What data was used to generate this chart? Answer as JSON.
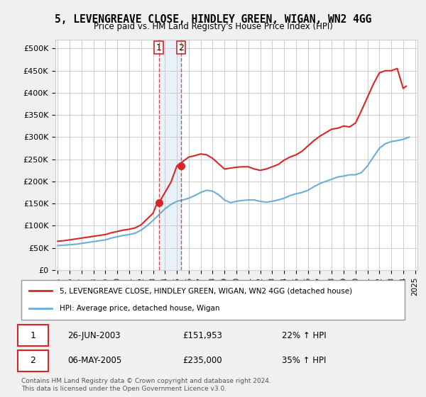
{
  "title": "5, LEVENGREAVE CLOSE, HINDLEY GREEN, WIGAN, WN2 4GG",
  "subtitle": "Price paid vs. HM Land Registry's House Price Index (HPI)",
  "legend_line1": "5, LEVENGREAVE CLOSE, HINDLEY GREEN, WIGAN, WN2 4GG (detached house)",
  "legend_line2": "HPI: Average price, detached house, Wigan",
  "transaction1_label": "1",
  "transaction1_date": "26-JUN-2003",
  "transaction1_price": "£151,953",
  "transaction1_hpi": "22% ↑ HPI",
  "transaction2_label": "2",
  "transaction2_date": "06-MAY-2005",
  "transaction2_price": "£235,000",
  "transaction2_hpi": "35% ↑ HPI",
  "footnote": "Contains HM Land Registry data © Crown copyright and database right 2024.\nThis data is licensed under the Open Government Licence v3.0.",
  "hpi_color": "#6baed6",
  "price_color": "#d62728",
  "transaction_color": "#d62728",
  "marker_color": "#d62728",
  "ylim": [
    0,
    520000
  ],
  "yticks": [
    0,
    50000,
    100000,
    150000,
    200000,
    250000,
    300000,
    350000,
    400000,
    450000,
    500000
  ],
  "ytick_labels": [
    "£0",
    "£50K",
    "£100K",
    "£150K",
    "£200K",
    "£250K",
    "£300K",
    "£350K",
    "£400K",
    "£450K",
    "£500K"
  ],
  "hpi_data": {
    "years": [
      1995,
      1995.5,
      1996,
      1996.5,
      1997,
      1997.5,
      1998,
      1998.5,
      1999,
      1999.5,
      2000,
      2000.5,
      2001,
      2001.5,
      2002,
      2002.5,
      2003,
      2003.5,
      2004,
      2004.5,
      2005,
      2005.5,
      2006,
      2006.5,
      2007,
      2007.5,
      2008,
      2008.5,
      2009,
      2009.5,
      2010,
      2010.5,
      2011,
      2011.5,
      2012,
      2012.5,
      2013,
      2013.5,
      2014,
      2014.5,
      2015,
      2015.5,
      2016,
      2016.5,
      2017,
      2017.5,
      2018,
      2018.5,
      2019,
      2019.5,
      2020,
      2020.5,
      2021,
      2021.5,
      2022,
      2022.5,
      2023,
      2023.5,
      2024,
      2024.5
    ],
    "values": [
      55000,
      56000,
      57000,
      58000,
      60000,
      62000,
      64000,
      66000,
      68000,
      72000,
      75000,
      78000,
      80000,
      83000,
      90000,
      100000,
      112000,
      125000,
      138000,
      148000,
      155000,
      158000,
      162000,
      168000,
      175000,
      180000,
      178000,
      170000,
      158000,
      152000,
      155000,
      157000,
      158000,
      158000,
      155000,
      153000,
      155000,
      158000,
      162000,
      168000,
      172000,
      175000,
      180000,
      188000,
      195000,
      200000,
      205000,
      210000,
      212000,
      215000,
      215000,
      220000,
      235000,
      255000,
      275000,
      285000,
      290000,
      292000,
      295000,
      300000
    ]
  },
  "price_data": {
    "years": [
      1995,
      1995.5,
      1996,
      1996.5,
      1997,
      1997.5,
      1998,
      1998.5,
      1999,
      1999.5,
      2000,
      2000.5,
      2001,
      2001.5,
      2002,
      2002.5,
      2003,
      2003.25,
      2003.5,
      2004,
      2004.5,
      2005,
      2005.5,
      2006,
      2006.5,
      2007,
      2007.5,
      2008,
      2008.5,
      2009,
      2009.5,
      2010,
      2010.5,
      2011,
      2011.5,
      2012,
      2012.5,
      2013,
      2013.5,
      2014,
      2014.5,
      2015,
      2015.5,
      2016,
      2016.5,
      2017,
      2017.5,
      2018,
      2018.5,
      2019,
      2019.5,
      2020,
      2020.5,
      2021,
      2021.5,
      2022,
      2022.5,
      2023,
      2023.5,
      2024,
      2024.25
    ],
    "values": [
      65000,
      66000,
      68000,
      70000,
      72000,
      74000,
      76000,
      78000,
      80000,
      84000,
      87000,
      90000,
      92000,
      95000,
      102000,
      115000,
      128000,
      145000,
      152000,
      175000,
      198000,
      235000,
      245000,
      255000,
      258000,
      262000,
      260000,
      252000,
      240000,
      228000,
      230000,
      232000,
      233000,
      233000,
      228000,
      225000,
      228000,
      233000,
      238000,
      248000,
      255000,
      260000,
      268000,
      280000,
      292000,
      302000,
      310000,
      318000,
      320000,
      325000,
      323000,
      332000,
      360000,
      390000,
      420000,
      445000,
      450000,
      450000,
      455000,
      410000,
      415000
    ]
  },
  "transaction1_x": 2003.48,
  "transaction1_y": 151953,
  "transaction2_x": 2005.35,
  "transaction2_y": 235000,
  "x_ticks": [
    1995,
    1996,
    1997,
    1998,
    1999,
    2000,
    2001,
    2002,
    2003,
    2004,
    2005,
    2006,
    2007,
    2008,
    2009,
    2010,
    2011,
    2012,
    2013,
    2014,
    2015,
    2016,
    2017,
    2018,
    2019,
    2020,
    2021,
    2022,
    2023,
    2024,
    2025
  ],
  "background_color": "#f0f0f0",
  "plot_bg_color": "#ffffff"
}
